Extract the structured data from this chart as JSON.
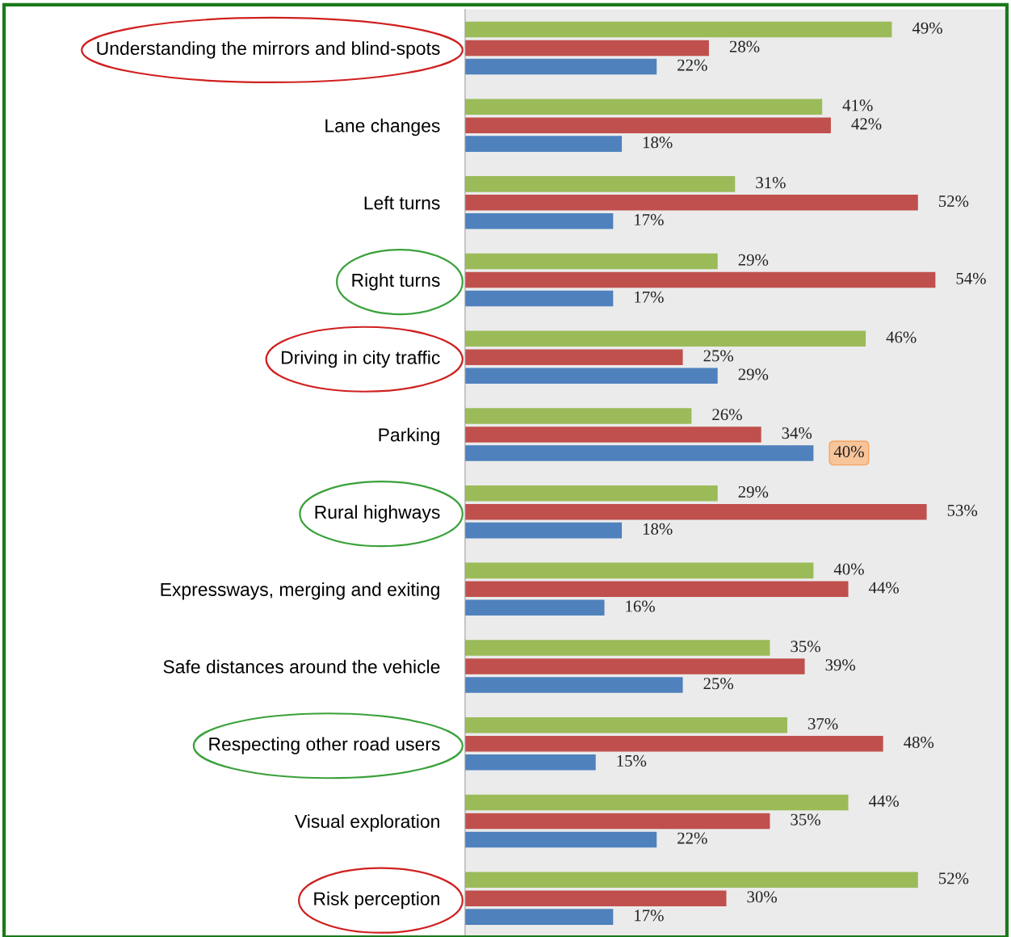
{
  "chart_data": {
    "type": "bar",
    "orientation": "horizontal",
    "tick_labels": "y",
    "categories": [
      "Understanding the mirrors and blind-spots",
      "Lane changes",
      "Left turns",
      "Right turns",
      "Driving in city traffic",
      "Parking",
      "Rural highways",
      "Expressways, merging and exiting",
      "Safe distances around the vehicle",
      "Respecting other road users",
      "Visual exploration",
      "Risk perception"
    ],
    "series": [
      {
        "color": "#9bbb59",
        "values": [
          49,
          41,
          31,
          29,
          46,
          26,
          29,
          40,
          35,
          37,
          44,
          52
        ],
        "value_labels": [
          "49%",
          "41%",
          "31%",
          "29%",
          "46%",
          "26%",
          "29%",
          "40%",
          "35%",
          "37%",
          "44%",
          "52%"
        ]
      },
      {
        "color": "#c0504d",
        "values": [
          28,
          42,
          52,
          54,
          25,
          34,
          53,
          44,
          39,
          48,
          35,
          30
        ],
        "value_labels": [
          "28%",
          "42%",
          "52%",
          "54%",
          "25%",
          "34%",
          "53%",
          "44%",
          "39%",
          "48%",
          "35%",
          "30%"
        ]
      },
      {
        "color": "#4f81bd",
        "values": [
          22,
          18,
          17,
          17,
          29,
          40,
          18,
          16,
          25,
          15,
          22,
          17
        ],
        "value_labels": [
          "22%",
          "18%",
          "17%",
          "17%",
          "29%",
          "40%",
          "18%",
          "16%",
          "25%",
          "15%",
          "22%",
          "17%"
        ]
      }
    ]
  }
}
